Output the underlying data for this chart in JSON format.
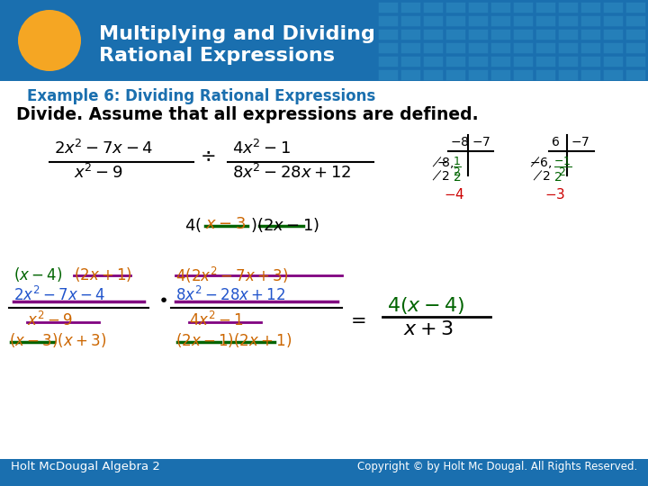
{
  "title_line1": "Multiplying and Dividing",
  "title_line2": "Rational Expressions",
  "title_bg_color": "#1a6faf",
  "title_text_color": "#ffffff",
  "header_circle_color": "#f5a623",
  "example_text": "Example 6: Dividing Rational Expressions",
  "example_color": "#1a6faf",
  "divide_text": "Divide. Assume that all expressions are defined.",
  "footer_left": "Holt McDougal Algebra 2",
  "footer_right": "Copyright © by Holt Mc Dougal. All Rights Reserved.",
  "footer_bg": "#1a6faf",
  "footer_text_color": "#ffffff",
  "bg_color": "#ffffff",
  "body_bg": "#ffffff",
  "tile_bg": "#2e8bc0"
}
